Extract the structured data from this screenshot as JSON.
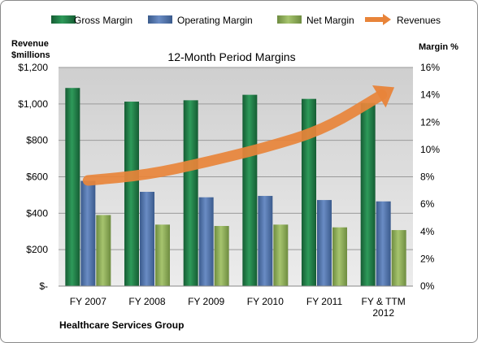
{
  "chart_data": {
    "type": "bar",
    "title": "12-Month Period Margins",
    "company": "Healthcare Services Group",
    "left_axis": {
      "label_line1": "Revenue",
      "label_line2": "$millions",
      "range": [
        0,
        1200
      ],
      "ticks": [
        "$-",
        "$200",
        "$400",
        "$600",
        "$800",
        "$1,000",
        "$1,200"
      ]
    },
    "right_axis": {
      "label": "Margin %",
      "range": [
        0,
        16
      ],
      "ticks": [
        "0%",
        "2%",
        "4%",
        "6%",
        "8%",
        "10%",
        "12%",
        "14%",
        "16%"
      ]
    },
    "categories": [
      [
        "FY 2007"
      ],
      [
        "FY 2008"
      ],
      [
        "FY 2009"
      ],
      [
        "FY 2010"
      ],
      [
        "FY 2011"
      ],
      [
        "FY & TTM",
        "2012"
      ]
    ],
    "series": [
      {
        "name": "Gross Margin",
        "axis": "right",
        "kind": "bar",
        "values": [
          14.5,
          13.5,
          13.6,
          14.0,
          13.7,
          13.4
        ]
      },
      {
        "name": "Operating Margin",
        "axis": "right",
        "kind": "bar",
        "values": [
          7.7,
          6.9,
          6.5,
          6.6,
          6.3,
          6.2
        ]
      },
      {
        "name": "Net Margin",
        "axis": "right",
        "kind": "bar",
        "values": [
          5.2,
          4.5,
          4.4,
          4.5,
          4.3,
          4.1
        ]
      },
      {
        "name": "Revenues",
        "axis": "left",
        "kind": "arrow",
        "values": [
          580,
          610,
          680,
          760,
          860,
          1050
        ]
      }
    ],
    "colors": {
      "gross": "#1e7a45",
      "operating": "#4a6fa8",
      "net": "#8aac55",
      "revenue": "#e8843a",
      "plot_background": "#d9d9d9",
      "title": "#17375e"
    },
    "grid": true,
    "legend_position": "top"
  }
}
